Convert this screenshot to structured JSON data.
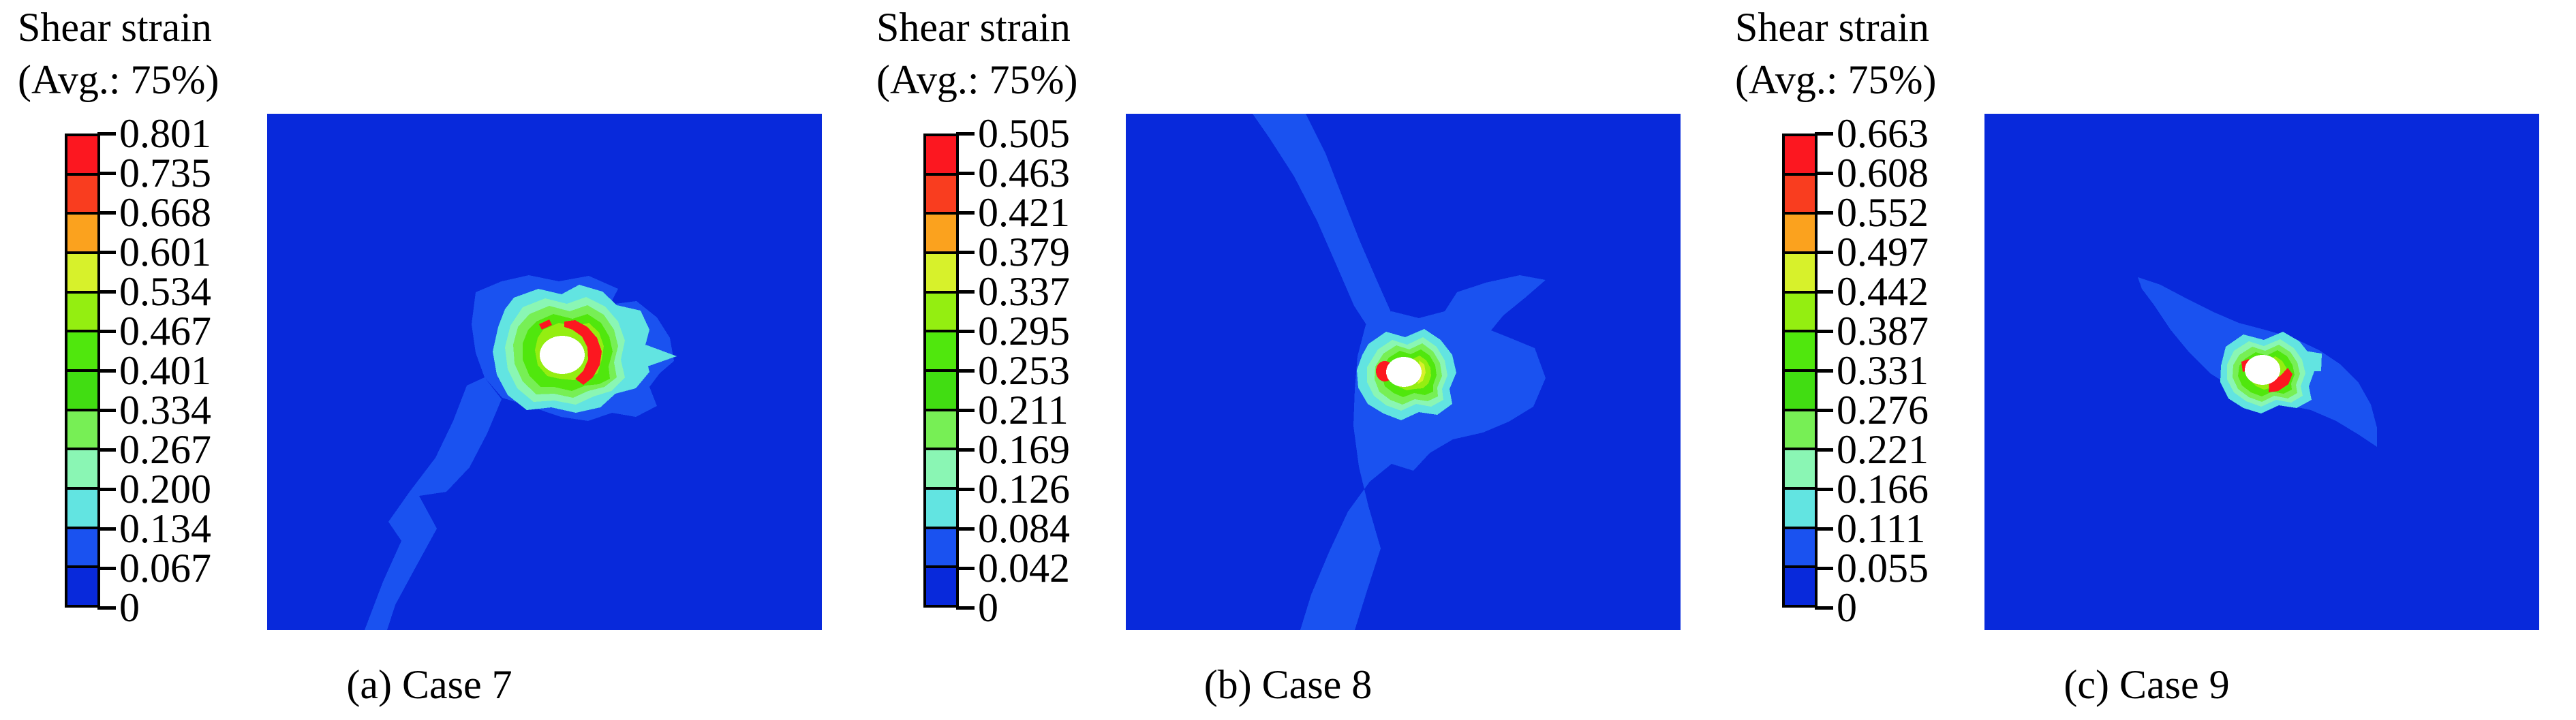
{
  "figure": {
    "background_color": "#ffffff",
    "legend_title_line1": "Shear strain",
    "legend_title_line2": "(Avg.: 75%)",
    "palette_top_to_bottom": [
      "#fc1720",
      "#f93d1f",
      "#fba21e",
      "#d7f12b",
      "#94ee11",
      "#50e70d",
      "#41dd12",
      "#77ef55",
      "#8af6b4",
      "#62e4e1",
      "#1a52f0",
      "#0829db"
    ],
    "field_background_color": "#0829db",
    "shear_band_color": "#1a52f0",
    "hole_color": "#ffffff",
    "panels": [
      {
        "id": "case-7",
        "caption": "(a) Case 7",
        "tick_labels": [
          "0.801",
          "0.735",
          "0.668",
          "0.601",
          "0.534",
          "0.467",
          "0.401",
          "0.334",
          "0.267",
          "0.200",
          "0.134",
          "0.067",
          "0"
        ]
      },
      {
        "id": "case-8",
        "caption": "(b) Case 8",
        "tick_labels": [
          "0.505",
          "0.463",
          "0.421",
          "0.379",
          "0.337",
          "0.295",
          "0.253",
          "0.211",
          "0.169",
          "0.126",
          "0.084",
          "0.042",
          "0"
        ]
      },
      {
        "id": "case-9",
        "caption": "(c) Case 9",
        "tick_labels": [
          "0.663",
          "0.608",
          "0.552",
          "0.497",
          "0.442",
          "0.387",
          "0.331",
          "0.276",
          "0.221",
          "0.166",
          "0.111",
          "0.055",
          "0"
        ]
      }
    ]
  },
  "chart_data": [
    {
      "type": "heatmap",
      "subtype": "fem-contour-plot",
      "title": "Shear strain (Avg.: 75%)",
      "caption": "(a) Case 7",
      "legend_position": "left",
      "colormap": "12-band rainbow, dark blue (low) to red (high)",
      "min": 0,
      "max": 0.801,
      "contour_levels": [
        0,
        0.067,
        0.134,
        0.2,
        0.267,
        0.334,
        0.401,
        0.467,
        0.534,
        0.601,
        0.668,
        0.735,
        0.801
      ],
      "field_description": "Uniform low-strain dark blue domain; light-blue shear band runs from the central hole down-left to the bottom edge; white circular hole slightly right of center surrounded by concentric green rings with a red high-strain arc on the right side of the hole"
    },
    {
      "type": "heatmap",
      "subtype": "fem-contour-plot",
      "title": "Shear strain (Avg.: 75%)",
      "caption": "(b) Case 8",
      "legend_position": "left",
      "colormap": "12-band rainbow, dark blue (low) to red (high)",
      "min": 0,
      "max": 0.505,
      "contour_levels": [
        0,
        0.042,
        0.084,
        0.126,
        0.169,
        0.211,
        0.253,
        0.295,
        0.337,
        0.379,
        0.421,
        0.463,
        0.505
      ],
      "field_description": "Dark blue domain crossed by a light-blue diagonal shear band from the top edge through the central hole to the bottom edge, with a wing toward the upper right; white hole near center surrounded by green rings and a small red spot on the left side of the hole"
    },
    {
      "type": "heatmap",
      "subtype": "fem-contour-plot",
      "title": "Shear strain (Avg.: 75%)",
      "caption": "(c) Case 9",
      "legend_position": "left",
      "colormap": "12-band rainbow, dark blue (low) to red (high)",
      "min": 0,
      "max": 0.663,
      "contour_levels": [
        0,
        0.055,
        0.111,
        0.166,
        0.221,
        0.276,
        0.331,
        0.387,
        0.442,
        0.497,
        0.552,
        0.608,
        0.663
      ],
      "field_description": "Dark blue domain with an elongated light-blue lens-shaped shear zone tilted from upper left to lower right; white hole at its center surrounded by green rings with red high-strain patches at the lower right and left of the hole"
    }
  ]
}
